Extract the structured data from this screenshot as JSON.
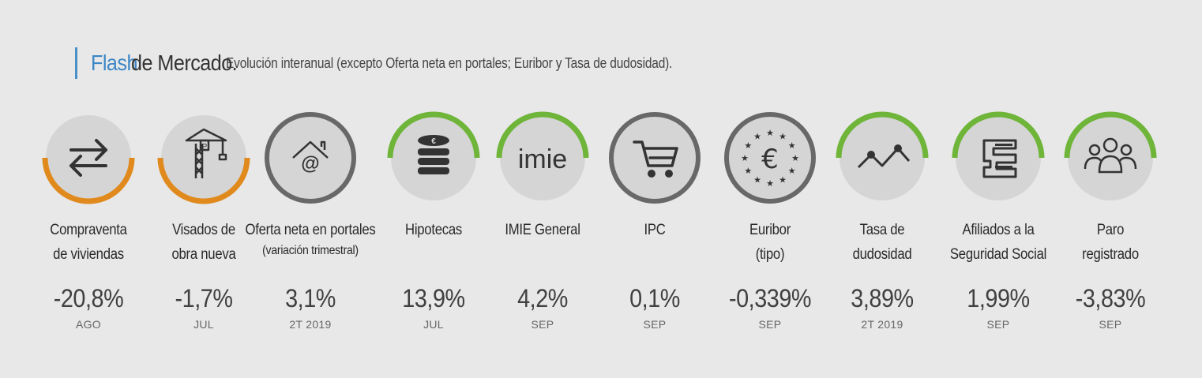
{
  "header": {
    "flash": "Flash",
    "title_rest": "de Mercado.",
    "subtitle": "Evolución interanual (excepto Oferta neta en portales; Euribor y Tasa de dudosidad)."
  },
  "colors": {
    "accent_blue": "#3b86c5",
    "arc_orange": "#e08a1e",
    "arc_green": "#6fb53a",
    "ring_gray": "#686868",
    "circle_fill": "#d5d5d5",
    "icon_dark": "#333333"
  },
  "indicators": [
    {
      "id": "compraventa",
      "icon": "transfer-arrows-icon",
      "arc": "orange-bottom",
      "label_lines": [
        "Compraventa",
        "de viviendas"
      ],
      "value": "-20,8%",
      "period": "AGO"
    },
    {
      "id": "visados",
      "icon": "crane-icon",
      "arc": "orange-bottom",
      "label_lines": [
        "Visados de",
        "obra nueva"
      ],
      "value": "-1,7%",
      "period": "JUL"
    },
    {
      "id": "oferta",
      "icon": "house-at-icon",
      "arc": "gray-full",
      "label_lines": [
        "Oferta neta en portales"
      ],
      "label_sub": "(variación trimestral)",
      "value": "3,1%",
      "period": "2T 2019"
    },
    {
      "id": "hipotecas",
      "icon": "coin-stack-icon",
      "arc": "green-top",
      "label_lines": [
        "Hipotecas"
      ],
      "value": "13,9%",
      "period": "JUL"
    },
    {
      "id": "imie",
      "icon": "imie-logo-icon",
      "icon_text": "imie",
      "arc": "green-top",
      "label_lines": [
        "IMIE General"
      ],
      "value": "4,2%",
      "period": "SEP"
    },
    {
      "id": "ipc",
      "icon": "shopping-cart-icon",
      "arc": "gray-full",
      "label_lines": [
        "IPC"
      ],
      "value": "0,1%",
      "period": "SEP"
    },
    {
      "id": "euribor",
      "icon": "euro-stars-icon",
      "icon_text": "€",
      "arc": "gray-full",
      "label_lines": [
        "Euribor",
        "(tipo)"
      ],
      "value": "-0,339%",
      "period": "SEP"
    },
    {
      "id": "dudosidad",
      "icon": "zigzag-chart-icon",
      "arc": "green-top",
      "label_lines": [
        "Tasa de",
        "dudosidad"
      ],
      "value": "3,89%",
      "period": "2T 2019"
    },
    {
      "id": "afiliados",
      "icon": "social-security-icon",
      "arc": "green-top",
      "label_lines": [
        "Afiliados a la",
        "Seguridad Social"
      ],
      "value": "1,99%",
      "period": "SEP"
    },
    {
      "id": "paro",
      "icon": "people-group-icon",
      "arc": "green-top",
      "label_lines": [
        "Paro",
        "registrado"
      ],
      "value": "-3,83%",
      "period": "SEP"
    }
  ]
}
